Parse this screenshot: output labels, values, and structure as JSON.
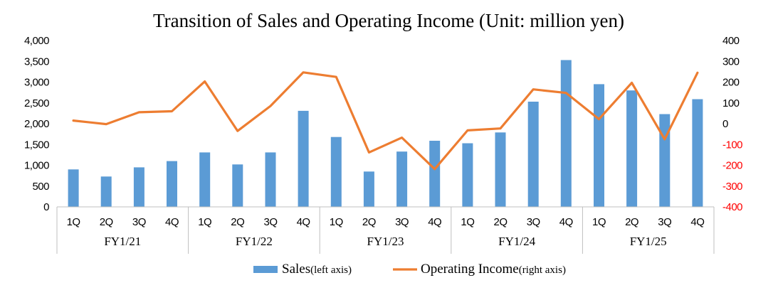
{
  "chart_data": {
    "type": "bar+line",
    "title": "Transition of Sales and Operating Income (Unit: million yen)",
    "categories": [
      "1Q",
      "2Q",
      "3Q",
      "4Q",
      "1Q",
      "2Q",
      "3Q",
      "4Q",
      "1Q",
      "2Q",
      "3Q",
      "4Q",
      "1Q",
      "2Q",
      "3Q",
      "4Q",
      "1Q",
      "2Q",
      "3Q",
      "4Q"
    ],
    "groups": [
      {
        "label": "FY1/21",
        "count": 4
      },
      {
        "label": "FY1/22",
        "count": 4
      },
      {
        "label": "FY1/23",
        "count": 4
      },
      {
        "label": "FY1/24",
        "count": 4
      },
      {
        "label": "FY1/25",
        "count": 4
      }
    ],
    "series": [
      {
        "name": "Sales",
        "name_note": "(left axis)",
        "type": "bar",
        "axis": "left",
        "color": "#5B9BD5",
        "values": [
          900,
          730,
          950,
          1100,
          1310,
          1020,
          1310,
          2310,
          1680,
          850,
          1330,
          1590,
          1530,
          1790,
          2530,
          3530,
          2950,
          2800,
          2230,
          2590
        ]
      },
      {
        "name": "Operating Income",
        "name_note": "(right axis)",
        "type": "line",
        "axis": "right",
        "color": "#ED7D31",
        "values": [
          15,
          -2,
          55,
          60,
          203,
          -35,
          85,
          247,
          225,
          -138,
          -67,
          -218,
          -32,
          -23,
          165,
          148,
          22,
          197,
          -75,
          245
        ]
      }
    ],
    "y_left": {
      "lim": [
        0,
        4000
      ],
      "ticks": [
        0,
        500,
        1000,
        1500,
        2000,
        2500,
        3000,
        3500,
        4000
      ],
      "tick_labels": [
        "0",
        "500",
        "1,000",
        "1,500",
        "2,000",
        "2,500",
        "3,000",
        "3,500",
        "4,000"
      ]
    },
    "y_right": {
      "lim": [
        -400,
        400
      ],
      "ticks": [
        -400,
        -300,
        -200,
        -100,
        0,
        100,
        200,
        300,
        400
      ],
      "tick_labels": [
        "-400",
        "-300",
        "-200",
        "-100",
        "0",
        "100",
        "200",
        "300",
        "400"
      ],
      "negative_color": "#FF0000",
      "positive_color": "#000000"
    },
    "grid": false,
    "legend_position": "bottom"
  }
}
